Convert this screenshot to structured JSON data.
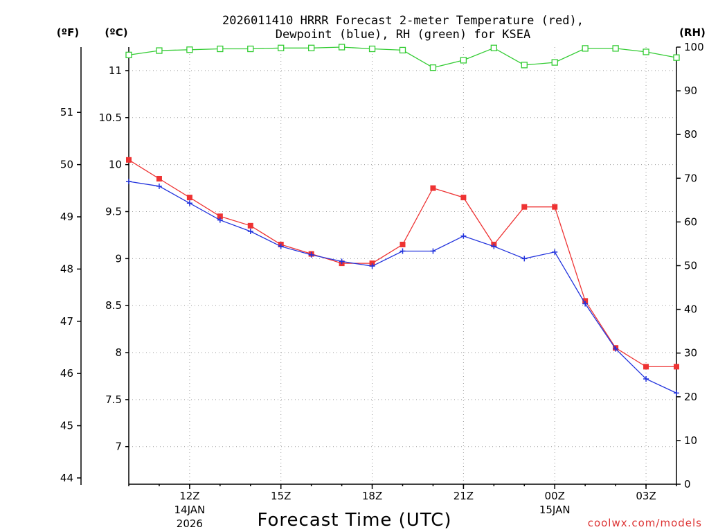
{
  "chart_data": {
    "type": "line",
    "title_line1": "2026011410 HRRR Forecast 2-meter Temperature (red),",
    "title_line2": "Dewpoint (blue), RH (green) for KSEA",
    "xlabel": "Forecast Time (UTC)",
    "credit": "coolwx.com/models",
    "units": {
      "fahrenheit": "(ºF)",
      "celsius": "(ºC)",
      "rh": "(RH)"
    },
    "x": [
      10,
      11,
      12,
      13,
      14,
      15,
      16,
      17,
      18,
      19,
      20,
      21,
      22,
      23,
      24,
      25,
      26,
      27,
      28
    ],
    "xlim": [
      10,
      28
    ],
    "x_ticks": [
      {
        "x": 12,
        "label": "12Z",
        "sub1": "14JAN",
        "sub2": "2026"
      },
      {
        "x": 15,
        "label": "15Z",
        "sub1": "",
        "sub2": ""
      },
      {
        "x": 18,
        "label": "18Z",
        "sub1": "",
        "sub2": ""
      },
      {
        "x": 21,
        "label": "21Z",
        "sub1": "",
        "sub2": ""
      },
      {
        "x": 24,
        "label": "00Z",
        "sub1": "15JAN",
        "sub2": ""
      },
      {
        "x": 27,
        "label": "03Z",
        "sub1": "",
        "sub2": ""
      }
    ],
    "celsius_axis": {
      "ylim": [
        6.6,
        11.25
      ],
      "ticks": [
        "7",
        "7.5",
        "8",
        "8.5",
        "9",
        "9.5",
        "10",
        "10.5",
        "11"
      ]
    },
    "fahrenheit_axis": {
      "ticks": [
        "44",
        "45",
        "46",
        "47",
        "48",
        "49",
        "50",
        "51"
      ]
    },
    "rh_axis": {
      "ylim": [
        0,
        100
      ],
      "ticks": [
        "0",
        "10",
        "20",
        "30",
        "40",
        "50",
        "60",
        "70",
        "80",
        "90",
        "100"
      ]
    },
    "series": [
      {
        "name": "Temperature",
        "color": "#ee3333",
        "axis": "celsius",
        "marker": "filled-square",
        "values": [
          10.05,
          9.85,
          9.65,
          9.45,
          9.35,
          9.15,
          9.05,
          8.95,
          8.95,
          9.15,
          9.75,
          9.65,
          9.15,
          9.55,
          9.55,
          8.55,
          8.05,
          7.85,
          7.85
        ]
      },
      {
        "name": "Dewpoint",
        "color": "#2233dd",
        "axis": "celsius",
        "marker": "plus",
        "values": [
          9.82,
          9.77,
          9.59,
          9.41,
          9.29,
          9.13,
          9.04,
          8.97,
          8.92,
          9.08,
          9.08,
          9.24,
          9.13,
          9.0,
          9.07,
          8.52,
          8.04,
          7.72,
          7.57
        ]
      },
      {
        "name": "RH",
        "color": "#33cc33",
        "axis": "rh",
        "marker": "open-square",
        "values": [
          98.2,
          99.2,
          99.4,
          99.6,
          99.6,
          99.8,
          99.8,
          100,
          99.6,
          99.3,
          95.3,
          97.0,
          99.8,
          95.9,
          96.5,
          99.7,
          99.7,
          98.9,
          97.6
        ]
      }
    ]
  }
}
